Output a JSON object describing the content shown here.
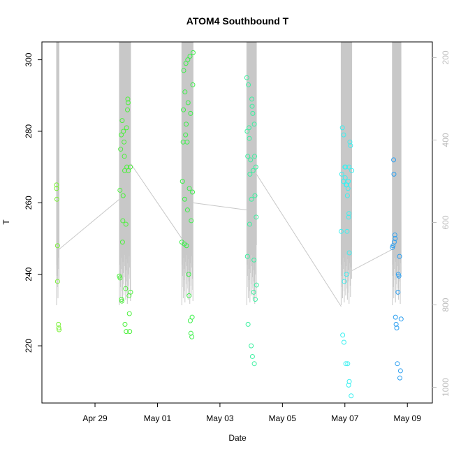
{
  "chart_data": {
    "type": "scatter",
    "title": "ATOM4 Southbound T",
    "xlabel": "Date",
    "ylabel": "T",
    "x_tick_labels": [
      "Apr 29",
      "May 01",
      "May 03",
      "May 05",
      "May 07",
      "May 09"
    ],
    "x_tick_days": [
      29,
      31,
      33,
      35,
      37,
      39
    ],
    "xlim": [
      27.3,
      39.8
    ],
    "ylim": [
      204,
      305
    ],
    "y_ticks": [
      220,
      240,
      260,
      280,
      300
    ],
    "right_axis": {
      "label": "",
      "ticks": [
        200,
        400,
        600,
        800,
        1000
      ],
      "ylim_reversed": [
        1038,
        162
      ],
      "color": "#bdbdbd"
    },
    "grid": false,
    "profiles": [
      {
        "color": "#7cf03a",
        "points": [
          [
            27.77,
            265
          ],
          [
            27.77,
            264
          ],
          [
            27.78,
            261
          ],
          [
            27.8,
            248
          ],
          [
            27.8,
            238
          ],
          [
            27.83,
            226
          ],
          [
            27.84,
            225
          ],
          [
            27.85,
            224.5
          ]
        ]
      },
      {
        "color": "#4cf03c",
        "points": [
          [
            29.78,
            239.5
          ],
          [
            29.8,
            239
          ],
          [
            29.8,
            263.5
          ],
          [
            29.82,
            275
          ],
          [
            29.84,
            279
          ],
          [
            29.85,
            233
          ],
          [
            29.86,
            232.5
          ],
          [
            29.87,
            283
          ],
          [
            29.88,
            249
          ],
          [
            29.89,
            255
          ],
          [
            29.9,
            262
          ],
          [
            29.91,
            280
          ],
          [
            29.93,
            277
          ],
          [
            29.94,
            273
          ],
          [
            29.95,
            269
          ],
          [
            29.96,
            226
          ],
          [
            29.98,
            236
          ],
          [
            29.99,
            254
          ],
          [
            30.0,
            224
          ],
          [
            30.01,
            281
          ],
          [
            30.02,
            270
          ],
          [
            30.04,
            286
          ],
          [
            30.05,
            289
          ],
          [
            30.06,
            288
          ],
          [
            30.07,
            269
          ],
          [
            30.09,
            234
          ],
          [
            30.1,
            229
          ],
          [
            30.11,
            224
          ],
          [
            30.13,
            270
          ],
          [
            30.14,
            235
          ]
        ]
      },
      {
        "color": "#3cf04a",
        "points": [
          [
            31.78,
            249
          ],
          [
            31.8,
            266
          ],
          [
            31.82,
            277
          ],
          [
            31.83,
            286
          ],
          [
            31.84,
            297
          ],
          [
            31.86,
            248.5
          ],
          [
            31.87,
            261
          ],
          [
            31.88,
            291
          ],
          [
            31.9,
            279
          ],
          [
            31.91,
            299
          ],
          [
            31.92,
            282
          ],
          [
            31.93,
            248
          ],
          [
            31.95,
            277
          ],
          [
            31.96,
            258
          ],
          [
            31.97,
            300
          ],
          [
            31.98,
            288
          ],
          [
            32.0,
            240
          ],
          [
            32.01,
            234
          ],
          [
            32.02,
            264
          ],
          [
            32.04,
            301
          ],
          [
            32.05,
            227
          ],
          [
            32.06,
            285
          ],
          [
            32.07,
            223.5
          ],
          [
            32.08,
            255
          ],
          [
            32.1,
            222.5
          ],
          [
            32.11,
            228
          ],
          [
            32.12,
            263
          ],
          [
            32.13,
            293
          ],
          [
            32.14,
            302
          ]
        ]
      },
      {
        "color": "#3cf0a0",
        "points": [
          [
            33.86,
            295
          ],
          [
            33.87,
            280
          ],
          [
            33.88,
            245
          ],
          [
            33.89,
            273
          ],
          [
            33.9,
            226
          ],
          [
            33.91,
            293
          ],
          [
            33.93,
            281
          ],
          [
            33.94,
            278
          ],
          [
            33.95,
            254
          ],
          [
            33.96,
            268
          ],
          [
            33.98,
            272
          ],
          [
            34.0,
            220
          ],
          [
            34.01,
            261
          ],
          [
            34.02,
            289
          ],
          [
            34.03,
            287
          ],
          [
            34.04,
            217
          ],
          [
            34.05,
            285
          ],
          [
            34.06,
            269
          ],
          [
            34.08,
            235
          ],
          [
            34.09,
            244
          ],
          [
            34.1,
            215
          ],
          [
            34.1,
            282
          ],
          [
            34.11,
            273
          ],
          [
            34.12,
            262
          ],
          [
            34.13,
            233
          ],
          [
            34.15,
            270
          ],
          [
            34.16,
            256
          ],
          [
            34.17,
            237
          ]
        ]
      },
      {
        "color": "#3cf0f0",
        "points": [
          [
            36.88,
            252
          ],
          [
            36.9,
            268
          ],
          [
            36.92,
            281
          ],
          [
            36.93,
            223
          ],
          [
            36.95,
            266
          ],
          [
            36.96,
            279
          ],
          [
            36.97,
            221
          ],
          [
            36.98,
            238
          ],
          [
            37.0,
            270
          ],
          [
            37.01,
            267
          ],
          [
            37.02,
            270
          ],
          [
            37.03,
            215
          ],
          [
            37.04,
            265
          ],
          [
            37.05,
            240
          ],
          [
            37.06,
            265
          ],
          [
            37.07,
            252
          ],
          [
            37.08,
            262
          ],
          [
            37.09,
            215
          ],
          [
            37.1,
            264
          ],
          [
            37.11,
            266
          ],
          [
            37.12,
            209
          ],
          [
            37.13,
            270
          ],
          [
            37.14,
            210
          ],
          [
            37.16,
            277
          ],
          [
            37.18,
            276
          ],
          [
            37.2,
            206
          ],
          [
            37.22,
            269
          ],
          [
            37.14,
            246
          ],
          [
            37.12,
            256
          ],
          [
            37.13,
            257
          ]
        ]
      },
      {
        "color": "#2c9ff0",
        "points": [
          [
            38.52,
            247.5
          ],
          [
            38.54,
            248
          ],
          [
            38.56,
            272
          ],
          [
            38.57,
            268
          ],
          [
            38.58,
            249
          ],
          [
            38.6,
            251
          ],
          [
            38.61,
            250
          ],
          [
            38.62,
            228
          ],
          [
            38.64,
            226
          ],
          [
            38.66,
            225
          ],
          [
            38.68,
            215
          ],
          [
            38.7,
            235
          ],
          [
            38.71,
            240
          ],
          [
            38.73,
            239.5
          ],
          [
            38.75,
            245
          ],
          [
            38.76,
            211
          ],
          [
            38.78,
            213
          ],
          [
            38.8,
            227.5
          ]
        ]
      }
    ]
  }
}
